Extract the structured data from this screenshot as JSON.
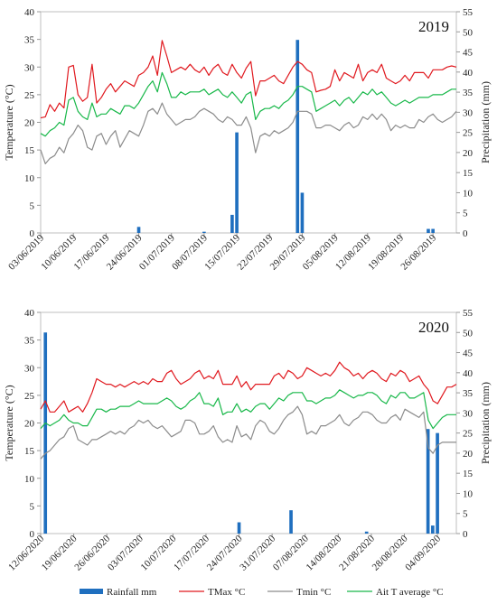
{
  "legend": {
    "rain_label": "Rainfall mm",
    "tmax_label": "TMax °C",
    "tmin_label": "Tmin °C",
    "tavg_label": "Ait T average °C"
  },
  "colors": {
    "rain": "#1f6fbf",
    "tmax": "#e0191f",
    "tmin": "#8c8c8c",
    "tavg": "#19b84a"
  },
  "chart_data": [
    {
      "type": "line",
      "annotation": "2019",
      "ylabel_left": "Temperature (°C)",
      "ylabel_right": "Precipitation (mm)",
      "ylim_left": [
        0,
        40
      ],
      "ylim_right": [
        0,
        55
      ],
      "yticks_left": [
        "0",
        "5",
        "10",
        "15",
        "20",
        "25",
        "30",
        "35",
        "40"
      ],
      "yticks_right": [
        "0",
        "5",
        "10",
        "15",
        "20",
        "25",
        "30",
        "35",
        "40",
        "45",
        "50",
        "55"
      ],
      "x_start": "2019-06-03",
      "x_end": "2019-08-31",
      "xtick_labels": [
        "03/06/2019",
        "10/06/2019",
        "17/06/2019",
        "24/06/2019",
        "01/07/2019",
        "08/07/2019",
        "15/07/2019",
        "22/07/2019",
        "29/07/2019",
        "05/08/2019",
        "12/08/2019",
        "19/08/2019",
        "26/08/2019"
      ],
      "series": [
        {
          "name": "TMax °C",
          "key": "tmax",
          "values": [
            20.8,
            21.0,
            23.2,
            22.0,
            23.5,
            22.6,
            30.0,
            30.3,
            25.0,
            23.8,
            24.5,
            30.5,
            23.5,
            24.5,
            26.0,
            27.0,
            25.5,
            26.5,
            27.5,
            27.0,
            26.5,
            28.5,
            29.0,
            30.0,
            32.0,
            28.5,
            34.8,
            32.0,
            29.0,
            29.5,
            30.0,
            29.5,
            30.5,
            29.5,
            29.0,
            30.0,
            28.5,
            29.8,
            30.5,
            29.0,
            28.5,
            30.5,
            29.0,
            28.0,
            29.8,
            31.0,
            24.8,
            27.5,
            27.5,
            28.0,
            28.5,
            27.5,
            27.0,
            28.5,
            30.0,
            31.0,
            30.5,
            29.5,
            29.0,
            25.5,
            25.8,
            26.0,
            26.5,
            29.5,
            27.5,
            29.0,
            28.5,
            28.0,
            30.5,
            27.5,
            29.0,
            29.5,
            29.0,
            30.5,
            28.0,
            27.5,
            27.0,
            27.5,
            28.5,
            27.5,
            29.0,
            29.0,
            29.0,
            28.0,
            29.5,
            29.5,
            29.5,
            30.0,
            30.2,
            30.0
          ]
        },
        {
          "name": "Tmin °C",
          "key": "tmin",
          "values": [
            15.0,
            12.5,
            13.5,
            14.0,
            15.5,
            14.5,
            17.0,
            18.0,
            19.5,
            18.5,
            15.5,
            15.0,
            17.5,
            18.0,
            16.0,
            17.5,
            18.5,
            15.5,
            17.0,
            18.5,
            18.0,
            17.5,
            19.5,
            22.0,
            22.5,
            21.5,
            23.5,
            21.5,
            20.5,
            19.5,
            20.0,
            20.5,
            20.5,
            21.0,
            22.0,
            22.5,
            22.0,
            21.5,
            20.5,
            20.0,
            21.0,
            20.5,
            19.5,
            19.5,
            21.0,
            19.0,
            14.5,
            17.5,
            18.0,
            17.5,
            18.5,
            18.0,
            18.5,
            19.0,
            20.0,
            22.0,
            22.0,
            22.0,
            21.5,
            19.0,
            19.0,
            19.5,
            19.5,
            19.0,
            18.5,
            19.5,
            20.0,
            19.0,
            19.5,
            21.0,
            20.5,
            21.5,
            20.5,
            21.5,
            20.5,
            18.5,
            19.5,
            19.0,
            19.5,
            19.0,
            19.0,
            20.5,
            20.0,
            21.0,
            21.5,
            20.5,
            20.0,
            20.5,
            21.0,
            22.0
          ]
        },
        {
          "name": "Ait T average °C",
          "key": "tavg",
          "values": [
            18.0,
            17.5,
            18.5,
            19.0,
            20.0,
            19.5,
            24.0,
            24.5,
            22.0,
            21.0,
            20.5,
            23.5,
            21.0,
            21.5,
            21.5,
            22.5,
            22.0,
            21.5,
            23.0,
            23.0,
            22.5,
            23.5,
            25.0,
            26.5,
            27.5,
            25.5,
            29.0,
            27.0,
            24.5,
            24.5,
            25.5,
            25.0,
            25.5,
            25.5,
            25.5,
            26.0,
            25.0,
            25.5,
            26.0,
            25.0,
            24.5,
            25.5,
            24.5,
            23.5,
            25.0,
            25.5,
            20.5,
            22.0,
            22.5,
            22.5,
            23.0,
            22.5,
            23.5,
            24.0,
            25.0,
            26.5,
            26.5,
            26.0,
            25.5,
            22.0,
            22.5,
            23.0,
            23.5,
            24.0,
            23.0,
            24.0,
            24.5,
            23.5,
            24.5,
            25.5,
            25.0,
            26.0,
            25.0,
            25.5,
            24.5,
            23.5,
            23.0,
            23.5,
            24.0,
            23.5,
            24.0,
            24.5,
            24.5,
            24.5,
            25.0,
            25.0,
            25.0,
            25.5,
            26.0,
            26.0
          ]
        },
        {
          "name": "Rainfall mm",
          "key": "rain",
          "type": "bar",
          "points": [
            {
              "x": "2019-06-24",
              "y": 1.5
            },
            {
              "x": "2019-07-08",
              "y": 0.3
            },
            {
              "x": "2019-07-14",
              "y": 4.5
            },
            {
              "x": "2019-07-15",
              "y": 25.0
            },
            {
              "x": "2019-07-28",
              "y": 48.0
            },
            {
              "x": "2019-07-29",
              "y": 10.0
            },
            {
              "x": "2019-08-25",
              "y": 1.0
            },
            {
              "x": "2019-08-26",
              "y": 1.0
            }
          ]
        }
      ]
    },
    {
      "type": "line",
      "annotation": "2020",
      "ylabel_left": "Temperature (°C)",
      "ylabel_right": "Precipitation (mm)",
      "ylim_left": [
        0,
        40
      ],
      "ylim_right": [
        0,
        55
      ],
      "yticks_left": [
        "0",
        "5",
        "10",
        "15",
        "20",
        "25",
        "30",
        "35",
        "40"
      ],
      "yticks_right": [
        "0",
        "5",
        "10",
        "15",
        "20",
        "25",
        "30",
        "35",
        "40",
        "45",
        "50",
        "55"
      ],
      "x_start": "2020-06-12",
      "x_end": "2020-09-08",
      "xtick_labels": [
        "12/06/2020",
        "19/06/2020",
        "26/06/2020",
        "03/07/2020",
        "10/07/2020",
        "17/07/2020",
        "24/07/2020",
        "31/07/2020",
        "07/08/2020",
        "14/08/2020",
        "21/08/2020",
        "28/08/2020",
        "04/09/2020"
      ],
      "series": [
        {
          "name": "TMax °C",
          "key": "tmax",
          "values": [
            22.5,
            24.0,
            22.0,
            22.0,
            23.0,
            24.0,
            22.0,
            22.5,
            23.0,
            22.0,
            23.5,
            25.5,
            28.0,
            27.5,
            27.0,
            27.0,
            26.5,
            27.0,
            26.5,
            27.0,
            27.5,
            27.0,
            27.5,
            27.0,
            28.0,
            27.5,
            27.5,
            29.0,
            29.5,
            28.0,
            27.0,
            27.5,
            28.0,
            29.0,
            29.5,
            28.0,
            28.5,
            28.0,
            29.5,
            27.0,
            27.0,
            27.0,
            28.5,
            26.5,
            27.5,
            26.0,
            27.0,
            27.0,
            27.0,
            27.0,
            28.5,
            29.0,
            28.0,
            29.5,
            29.0,
            28.0,
            28.5,
            30.0,
            29.5,
            29.0,
            28.5,
            29.0,
            28.5,
            29.5,
            31.0,
            30.0,
            29.5,
            28.5,
            29.0,
            28.0,
            29.0,
            29.5,
            29.0,
            28.0,
            27.5,
            29.0,
            28.5,
            29.5,
            29.0,
            27.5,
            28.0,
            28.5,
            27.0,
            26.0,
            24.0,
            23.5,
            25.0,
            26.5,
            26.5,
            27.0
          ]
        },
        {
          "name": "Tmin °C",
          "key": "tmin",
          "values": [
            13.5,
            14.5,
            15.0,
            16.0,
            17.0,
            17.5,
            19.0,
            19.5,
            17.0,
            16.5,
            16.0,
            17.0,
            17.0,
            17.5,
            18.0,
            18.5,
            18.0,
            18.5,
            18.0,
            19.0,
            19.5,
            20.5,
            20.0,
            20.5,
            19.5,
            19.0,
            19.5,
            18.5,
            17.5,
            18.0,
            18.5,
            20.5,
            20.5,
            20.0,
            18.0,
            18.0,
            18.5,
            19.5,
            17.5,
            16.5,
            17.0,
            16.5,
            19.5,
            17.5,
            18.0,
            17.0,
            19.5,
            20.5,
            20.0,
            18.5,
            18.0,
            19.0,
            20.5,
            21.5,
            22.0,
            23.0,
            21.5,
            18.0,
            18.5,
            18.0,
            19.5,
            19.5,
            20.0,
            20.5,
            21.5,
            20.0,
            19.5,
            20.5,
            21.0,
            22.0,
            22.0,
            21.5,
            20.5,
            20.0,
            20.0,
            21.0,
            21.5,
            20.5,
            22.5,
            22.0,
            21.5,
            21.0,
            22.0,
            15.5,
            14.5,
            16.0,
            16.5,
            16.5,
            16.5,
            16.5
          ]
        },
        {
          "name": "Ait T average °C",
          "key": "tavg",
          "values": [
            19.0,
            20.0,
            19.5,
            20.0,
            20.5,
            21.5,
            20.5,
            20.0,
            20.0,
            19.5,
            19.5,
            21.0,
            22.5,
            22.5,
            22.0,
            22.5,
            22.5,
            23.0,
            23.0,
            23.0,
            23.5,
            24.0,
            23.5,
            23.5,
            23.5,
            23.5,
            24.0,
            24.5,
            24.0,
            23.0,
            22.5,
            23.0,
            24.0,
            24.5,
            25.5,
            23.5,
            23.5,
            23.0,
            24.5,
            21.5,
            22.0,
            22.0,
            23.5,
            22.0,
            22.5,
            22.0,
            23.0,
            23.5,
            23.5,
            22.5,
            23.5,
            24.5,
            24.0,
            25.0,
            25.5,
            25.5,
            25.5,
            24.0,
            24.0,
            23.5,
            24.0,
            24.5,
            24.5,
            25.0,
            26.0,
            25.5,
            25.0,
            24.5,
            25.0,
            25.0,
            25.5,
            25.5,
            25.0,
            24.0,
            23.5,
            25.0,
            24.5,
            25.5,
            25.5,
            24.5,
            24.5,
            25.0,
            25.5,
            20.5,
            19.0,
            20.0,
            21.0,
            21.5,
            21.5,
            21.5
          ]
        },
        {
          "name": "Rainfall mm",
          "key": "rain",
          "type": "bar",
          "points": [
            {
              "x": "2020-06-13",
              "y": 50.0
            },
            {
              "x": "2020-07-24",
              "y": 2.8
            },
            {
              "x": "2020-08-04",
              "y": 5.8
            },
            {
              "x": "2020-08-20",
              "y": 0.5
            },
            {
              "x": "2020-09-02",
              "y": 26.0
            },
            {
              "x": "2020-09-03",
              "y": 2.0
            },
            {
              "x": "2020-09-04",
              "y": 25.0
            }
          ]
        }
      ]
    }
  ]
}
